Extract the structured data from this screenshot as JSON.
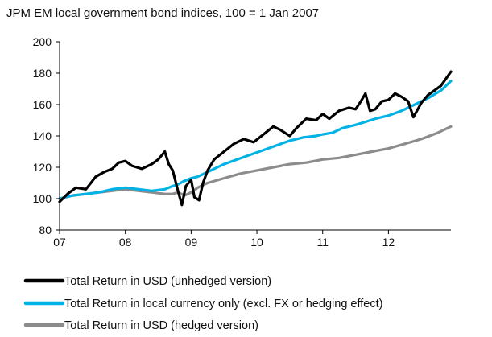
{
  "chart_data": {
    "type": "line",
    "title": "JPM EM local government bond indices, 100 = 1 Jan 2007",
    "xlabel": "",
    "ylabel": "",
    "x_ticks": [
      "07",
      "08",
      "09",
      "10",
      "11",
      "12"
    ],
    "x_tick_years": [
      2007,
      2008,
      2009,
      2010,
      2011,
      2012
    ],
    "xlim": [
      2007.0,
      2012.95
    ],
    "y_ticks": [
      80,
      100,
      120,
      140,
      160,
      180,
      200
    ],
    "ylim": [
      80,
      200
    ],
    "grid": false,
    "legend_position": "bottom",
    "series": [
      {
        "name": "Total Return in USD (unhedged version)",
        "color": "#000000",
        "x": [
          2007.0,
          2007.12,
          2007.25,
          2007.4,
          2007.55,
          2007.68,
          2007.8,
          2007.9,
          2008.0,
          2008.1,
          2008.25,
          2008.4,
          2008.5,
          2008.6,
          2008.66,
          2008.72,
          2008.8,
          2008.86,
          2008.92,
          2009.0,
          2009.05,
          2009.12,
          2009.18,
          2009.25,
          2009.35,
          2009.5,
          2009.65,
          2009.8,
          2009.95,
          2010.1,
          2010.25,
          2010.35,
          2010.5,
          2010.6,
          2010.75,
          2010.9,
          2011.0,
          2011.1,
          2011.25,
          2011.4,
          2011.5,
          2011.58,
          2011.65,
          2011.72,
          2011.8,
          2011.9,
          2012.0,
          2012.1,
          2012.2,
          2012.3,
          2012.38,
          2012.5,
          2012.6,
          2012.7,
          2012.8,
          2012.9,
          2012.95
        ],
        "values": [
          98,
          103,
          107,
          106,
          114,
          117,
          119,
          123,
          124,
          121,
          119,
          122,
          125,
          130,
          122,
          118,
          105,
          96,
          108,
          112,
          101,
          99,
          110,
          118,
          125,
          130,
          135,
          138,
          136,
          141,
          146,
          144,
          140,
          145,
          151,
          150,
          154,
          151,
          156,
          158,
          157,
          162,
          167,
          156,
          157,
          162,
          163,
          167,
          165,
          162,
          152,
          161,
          166,
          169,
          172,
          178,
          181
        ]
      },
      {
        "name": "Total Return in local currency only (excl. FX or hedging effect)",
        "color": "#00b2e6",
        "x": [
          2007.0,
          2007.2,
          2007.4,
          2007.6,
          2007.8,
          2008.0,
          2008.2,
          2008.4,
          2008.6,
          2008.72,
          2008.8,
          2008.88,
          2009.0,
          2009.1,
          2009.2,
          2009.35,
          2009.5,
          2009.7,
          2009.9,
          2010.1,
          2010.3,
          2010.5,
          2010.7,
          2010.9,
          2011.0,
          2011.15,
          2011.3,
          2011.5,
          2011.65,
          2011.8,
          2012.0,
          2012.2,
          2012.4,
          2012.6,
          2012.8,
          2012.95
        ],
        "values": [
          100,
          102,
          103,
          104,
          106,
          107,
          106,
          105,
          106,
          108,
          109,
          111,
          113,
          114,
          116,
          119,
          122,
          125,
          128,
          131,
          134,
          137,
          139,
          140,
          141,
          142,
          145,
          147,
          149,
          151,
          153,
          156,
          160,
          164,
          169,
          175
        ]
      },
      {
        "name": "Total Return in USD (hedged version)",
        "color": "#8c8c8c",
        "x": [
          2007.0,
          2007.2,
          2007.4,
          2007.6,
          2007.8,
          2008.0,
          2008.2,
          2008.4,
          2008.6,
          2008.72,
          2008.8,
          2008.9,
          2009.0,
          2009.1,
          2009.25,
          2009.5,
          2009.75,
          2010.0,
          2010.25,
          2010.5,
          2010.75,
          2011.0,
          2011.25,
          2011.5,
          2011.75,
          2012.0,
          2012.25,
          2012.5,
          2012.75,
          2012.95
        ],
        "values": [
          100,
          102,
          103,
          104,
          105,
          106,
          105,
          104,
          103,
          103,
          104,
          102,
          104,
          107,
          110,
          113,
          116,
          118,
          120,
          122,
          123,
          125,
          126,
          128,
          130,
          132,
          135,
          138,
          142,
          146
        ]
      }
    ]
  }
}
